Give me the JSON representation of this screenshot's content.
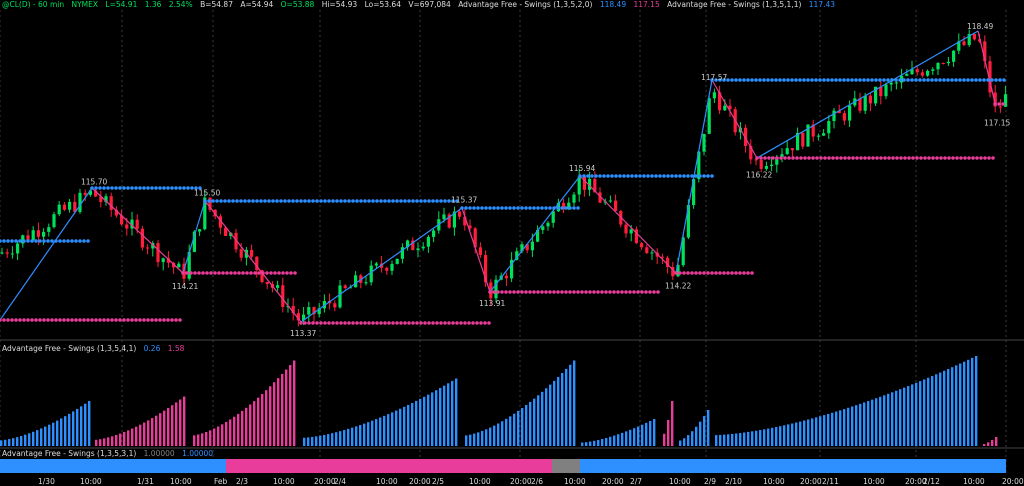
{
  "header": {
    "symbol": "@CL(D) - 60 min",
    "exchange": "NYMEX",
    "last": "L=54.91",
    "change": "1.36",
    "change_pct": "2.54%",
    "bid": "B=54.87",
    "ask": "A=54.94",
    "open": "O=53.88",
    "high": "Hi=54.93",
    "low": "Lo=53.64",
    "volume": "V=697,084",
    "indicator": "Advantage Free - Swings (1,3,5,2,0)",
    "ind_val1": "118.49",
    "ind_val2": "117.15",
    "indicator2": "Advantage Free - Swings (1,3,5,1,1)",
    "ind2_val": "117.43"
  },
  "sub_panel": {
    "title": "Advantage Free - Swings (1,3,5,4,1)",
    "val1": "0.26",
    "val2": "1.58"
  },
  "ribbon_panel": {
    "title": "Advantage Free - Swings (1,3,5,3,1)",
    "val1": "1.00000",
    "val2": "1.00000"
  },
  "colors": {
    "up": "#00e05a",
    "down": "#ff1f3c",
    "blue": "#2e8fff",
    "pink": "#e83d9a",
    "gray": "#808080",
    "text": "#dddddd"
  },
  "chart_data": {
    "type": "candlestick",
    "swing_points": [
      {
        "label": "115.70",
        "type": "high"
      },
      {
        "label": "115.50",
        "type": "high"
      },
      {
        "label": "114.21",
        "type": "low"
      },
      {
        "label": "113.37",
        "type": "low"
      },
      {
        "label": "115.37",
        "type": "high"
      },
      {
        "label": "113.91",
        "type": "low"
      },
      {
        "label": "115.94",
        "type": "high"
      },
      {
        "label": "114.22",
        "type": "low"
      },
      {
        "label": "117.57",
        "type": "high"
      },
      {
        "label": "116.22",
        "type": "low"
      },
      {
        "label": "118.49",
        "type": "high"
      },
      {
        "label": "117.15",
        "type": "low"
      }
    ],
    "x_ticks": [
      "1/30",
      "10:00",
      "1/31",
      "10:00",
      "Feb",
      "2/3",
      "10:00",
      "20:00",
      "2/4",
      "10:00",
      "20:00",
      "2/5",
      "10:00",
      "20:00",
      "2/6",
      "10:00",
      "20:00",
      "2/7",
      "10:00",
      "2/9",
      "2/10",
      "10:00",
      "20:00",
      "2/11",
      "10:00",
      "20:00",
      "2/12",
      "10:00",
      "20:00"
    ],
    "histogram": [
      {
        "color": "blue",
        "peak": 0.5
      },
      {
        "color": "pink",
        "peak": 0.55
      },
      {
        "color": "pink",
        "peak": 0.95
      },
      {
        "color": "blue",
        "peak": 0.75
      },
      {
        "color": "blue",
        "peak": 0.95
      },
      {
        "color": "blue",
        "peak": 0.3
      },
      {
        "color": "pink",
        "peak": 0.5
      },
      {
        "color": "blue",
        "peak": 0.4
      },
      {
        "color": "blue",
        "peak": 1.0
      },
      {
        "color": "pink",
        "peak": 0.1
      }
    ],
    "ribbon": [
      "blue",
      "pink",
      "gray",
      "blue"
    ]
  }
}
